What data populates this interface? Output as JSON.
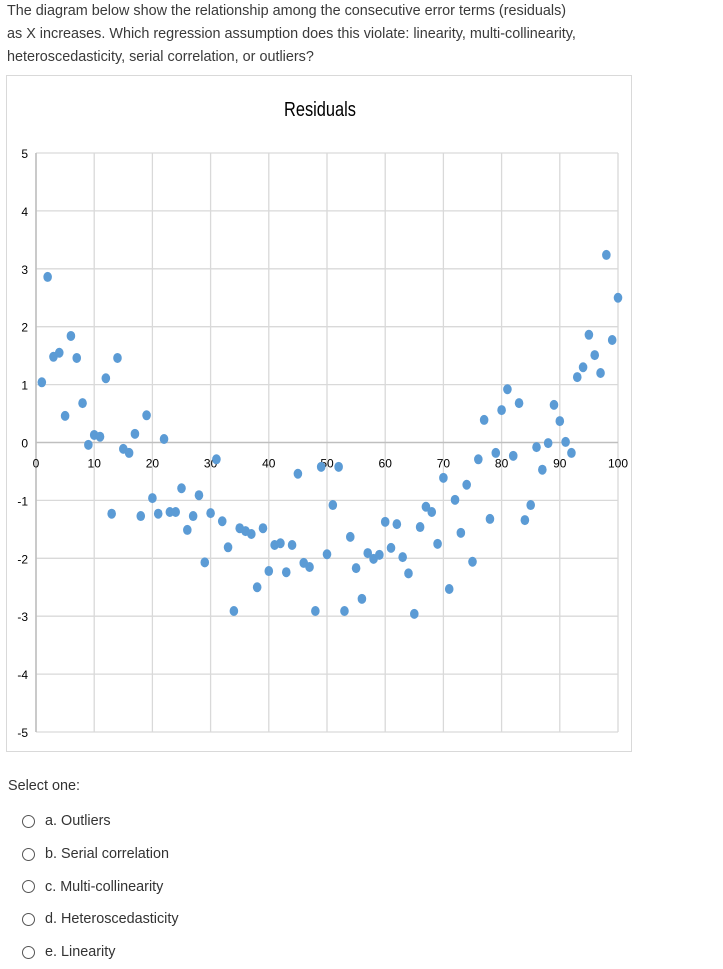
{
  "question": {
    "line1": "The diagram below show the relationship among the consecutive error terms (residuals)",
    "line2": "as X increases. Which regression assumption does this violate: linearity, multi-collinearity,",
    "line3": "heteroscedasticity, serial correlation, or outliers?"
  },
  "colors": {
    "marker": "#5B9BD5",
    "grid": "#d9d9d9",
    "axis": "#bfbfbf",
    "text": "#000000"
  },
  "chart_data": {
    "type": "scatter",
    "title": "Residuals",
    "xlabel": "",
    "ylabel": "",
    "xlim": [
      0,
      100
    ],
    "ylim": [
      -5,
      5
    ],
    "x_ticks": [
      0,
      10,
      20,
      30,
      40,
      50,
      60,
      70,
      80,
      90,
      100
    ],
    "y_ticks": [
      5,
      4,
      3,
      2,
      1,
      0,
      -1,
      -2,
      -3,
      -4,
      -5
    ],
    "grid": true,
    "legend": null,
    "series": [
      {
        "name": "Residuals",
        "x": [
          1,
          2,
          3,
          4,
          5,
          6,
          7,
          8,
          9,
          10,
          11,
          12,
          13,
          14,
          15,
          16,
          17,
          18,
          19,
          20,
          21,
          22,
          23,
          24,
          25,
          26,
          27,
          28,
          29,
          30,
          31,
          32,
          33,
          34,
          35,
          36,
          37,
          38,
          39,
          40,
          41,
          42,
          43,
          44,
          45,
          46,
          47,
          48,
          49,
          50,
          51,
          52,
          53,
          54,
          55,
          56,
          57,
          58,
          59,
          60,
          61,
          62,
          63,
          64,
          65,
          66,
          67,
          68,
          69,
          70,
          71,
          72,
          73,
          74,
          75,
          76,
          77,
          78,
          79,
          80,
          81,
          82,
          83,
          84,
          85,
          86,
          87,
          88,
          89,
          90,
          91,
          92,
          93,
          94,
          95,
          96,
          97,
          98,
          99,
          100
        ],
        "values": [
          1.04,
          2.86,
          1.48,
          1.55,
          0.46,
          1.84,
          1.46,
          0.68,
          -0.04,
          0.13,
          0.1,
          1.11,
          -1.23,
          1.46,
          -0.11,
          -0.18,
          0.15,
          -1.27,
          0.47,
          -0.96,
          -1.23,
          0.06,
          -1.2,
          -1.2,
          -0.79,
          -1.51,
          -1.27,
          -0.91,
          -2.07,
          -1.22,
          -0.29,
          -1.36,
          -1.81,
          -2.91,
          -1.48,
          -1.53,
          -1.58,
          -2.5,
          -1.48,
          -2.22,
          -1.77,
          -1.74,
          -2.24,
          -1.77,
          -0.54,
          -2.08,
          -2.15,
          -2.91,
          -0.42,
          -1.93,
          -1.08,
          -0.42,
          -2.91,
          -1.63,
          -2.17,
          -2.7,
          -1.91,
          -2.01,
          -1.94,
          -1.37,
          -1.82,
          -1.41,
          -1.98,
          -2.26,
          -2.96,
          -1.46,
          -1.11,
          -1.2,
          -1.75,
          -0.61,
          -2.53,
          -0.99,
          -1.56,
          -0.73,
          -2.06,
          -0.29,
          0.39,
          -1.32,
          -0.18,
          0.56,
          0.92,
          -0.23,
          0.68,
          -1.34,
          -1.08,
          -0.08,
          -0.47,
          -0.01,
          0.65,
          0.37,
          0.01,
          -0.18,
          1.13,
          1.3,
          1.86,
          1.51,
          1.2,
          3.24,
          1.77,
          2.5
        ]
      }
    ]
  },
  "answer": {
    "prompt": "Select one:",
    "options": [
      {
        "label": "a. Outliers"
      },
      {
        "label": "b. Serial correlation"
      },
      {
        "label": "c. Multi-collinearity"
      },
      {
        "label": "d. Heteroscedasticity"
      },
      {
        "label": "e. Linearity"
      }
    ]
  }
}
